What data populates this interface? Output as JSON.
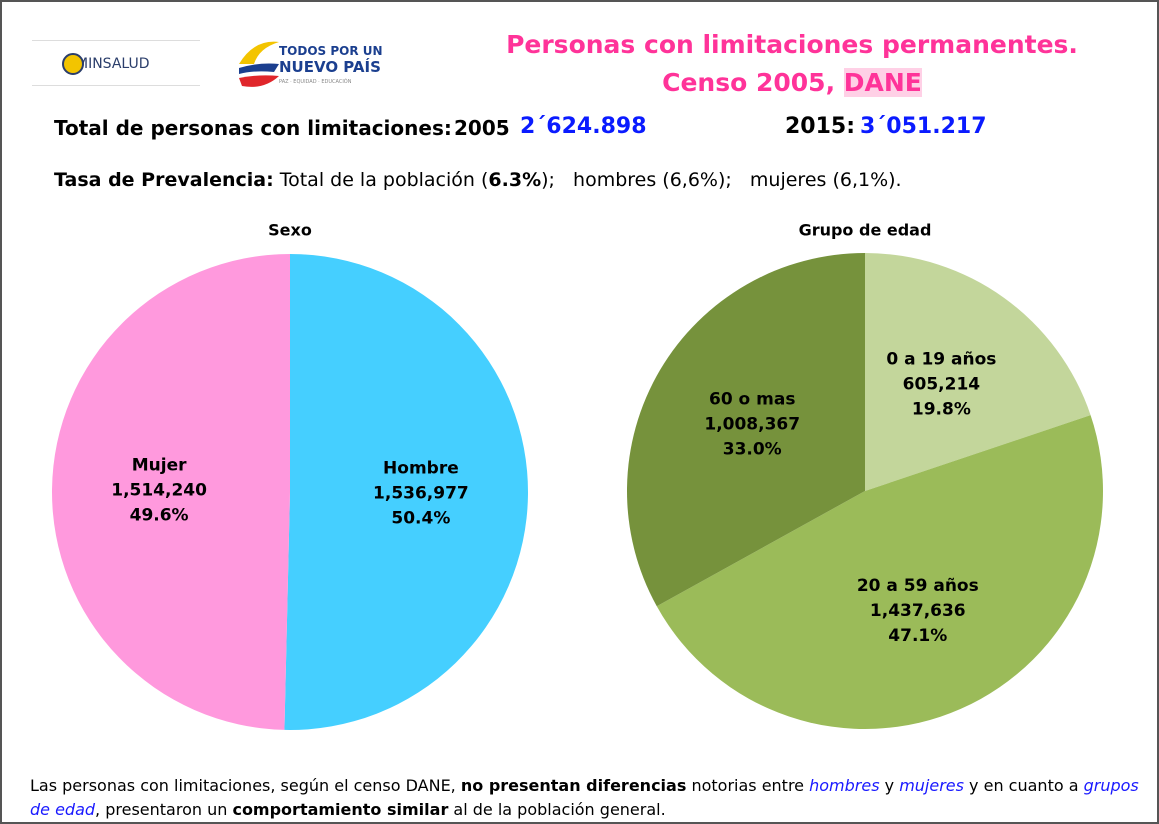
{
  "header": {
    "minsalud": "MINSALUD",
    "logo_line1": "TODOS POR UN",
    "logo_line2": "NUEVO PAÍS",
    "logo_tagline": "PAZ · EQUIDAD · EDUCACIÓN",
    "title_line1": "Personas con limitaciones permanentes.",
    "title_line2": "Censo 2005, ",
    "title_dane": "DANE"
  },
  "totals": {
    "label": "Total de personas con limitaciones:",
    "year1": "2005",
    "value1": "2´624.898",
    "year2": "2015:",
    "value2": "3´051.217"
  },
  "prevalence": {
    "label": "Tasa de Prevalencia:",
    "text1": " Total de la población (",
    "rate": "6.3%",
    "text2": ");   hombres (6,6%);   mujeres (6,1%)."
  },
  "footer": {
    "segments": [
      {
        "text": "Las personas con limitaciones, según el censo DANE, ",
        "style": "normal"
      },
      {
        "text": "no presentan diferencias",
        "style": "bold"
      },
      {
        "text": " notorias entre ",
        "style": "normal"
      },
      {
        "text": "hombres",
        "style": "italic-blue"
      },
      {
        "text": " y ",
        "style": "normal"
      },
      {
        "text": "mujeres",
        "style": "italic-blue"
      },
      {
        "text": " y en cuanto a ",
        "style": "normal"
      },
      {
        "text": "grupos de edad",
        "style": "italic-blue"
      },
      {
        "text": ", presentaron un ",
        "style": "normal"
      },
      {
        "text": "comportamiento similar",
        "style": "bold"
      },
      {
        "text": " al de la población general.",
        "style": "normal"
      }
    ]
  },
  "chart_data": [
    {
      "type": "pie",
      "title": "Sexo",
      "categories": [
        "Hombre",
        "Mujer"
      ],
      "values": [
        1536977,
        1514240
      ],
      "value_labels": [
        "1,536,977",
        "1,514,240"
      ],
      "percent_labels": [
        "50.4%",
        "49.6%"
      ],
      "colors": [
        "#45cfff",
        "#ff99dd"
      ]
    },
    {
      "type": "pie",
      "title": "Grupo de edad",
      "categories": [
        "0 a 19 años",
        "20 a 59 años",
        "60 o mas"
      ],
      "values": [
        605214,
        1437636,
        1008367
      ],
      "value_labels": [
        "605,214",
        "1,437,636",
        "1,008,367"
      ],
      "percent_labels": [
        "19.8%",
        "47.1%",
        "33.0%"
      ],
      "colors": [
        "#c3d69b",
        "#9bbb59",
        "#76923c"
      ]
    }
  ]
}
